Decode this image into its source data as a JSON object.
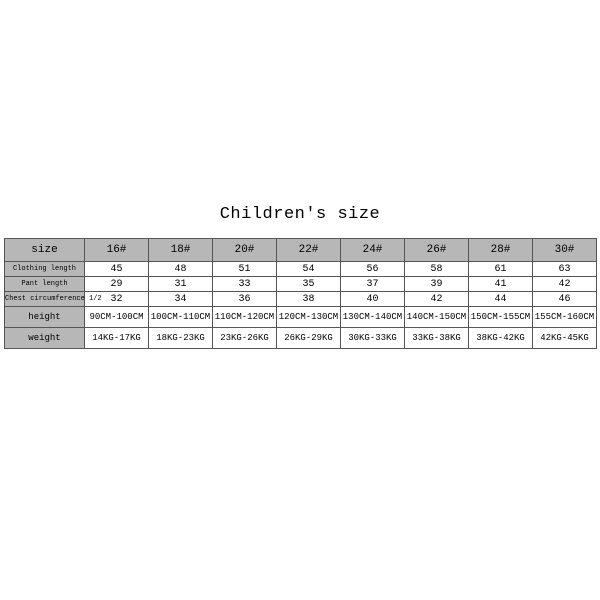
{
  "title": "Children's size",
  "table": {
    "type": "table",
    "header_bg": "#b7b7b7",
    "cell_bg": "#ffffff",
    "border_color": "#555555",
    "columns": [
      "size",
      "16#",
      "18#",
      "20#",
      "22#",
      "24#",
      "26#",
      "28#",
      "30#"
    ],
    "rows": [
      {
        "label": "Clothing length",
        "cells": [
          "45",
          "48",
          "51",
          "54",
          "56",
          "58",
          "61",
          "63"
        ]
      },
      {
        "label": "Pant length",
        "cells": [
          "29",
          "31",
          "33",
          "35",
          "37",
          "39",
          "41",
          "42"
        ]
      },
      {
        "label": "Chest circumference 1/2",
        "cells": [
          "32",
          "34",
          "36",
          "38",
          "40",
          "42",
          "44",
          "46"
        ]
      },
      {
        "label": "height",
        "cells": [
          "90CM-100CM",
          "100CM-110CM",
          "110CM-120CM",
          "120CM-130CM",
          "130CM-140CM",
          "140CM-150CM",
          "150CM-155CM",
          "155CM-160CM"
        ]
      },
      {
        "label": "weight",
        "cells": [
          "14KG-17KG",
          "18KG-23KG",
          "23KG-26KG",
          "26KG-29KG",
          "30KG-33KG",
          "33KG-38KG",
          "38KG-42KG",
          "42KG-45KG"
        ]
      }
    ]
  }
}
